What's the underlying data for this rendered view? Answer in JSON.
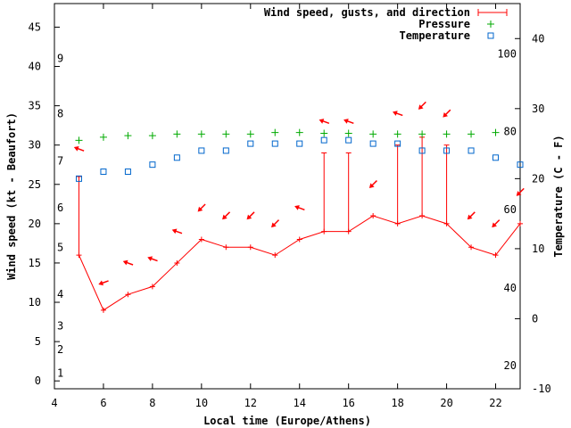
{
  "chart_data": {
    "type": "line",
    "title": "",
    "xlabel": "Local time (Europe/Athens)",
    "ylabel": "Wind speed (kt - Beaufort)",
    "y2label": "Temperature (C - F)",
    "xlim": [
      4,
      23
    ],
    "ylim": [
      -1,
      48
    ],
    "y2lim": [
      -10,
      45
    ],
    "x_ticks": [
      4,
      6,
      8,
      10,
      12,
      14,
      16,
      18,
      20,
      22
    ],
    "y_ticks": [
      0,
      5,
      10,
      15,
      20,
      25,
      30,
      35,
      40,
      45
    ],
    "y2_ticks": [
      -10,
      0,
      10,
      20,
      30,
      40
    ],
    "beaufort_ticks": [
      {
        "label": "1",
        "kt": 1
      },
      {
        "label": "2",
        "kt": 4
      },
      {
        "label": "3",
        "kt": 7
      },
      {
        "label": "4",
        "kt": 11
      },
      {
        "label": "5",
        "kt": 17
      },
      {
        "label": "6",
        "kt": 22
      },
      {
        "label": "7",
        "kt": 28
      },
      {
        "label": "8",
        "kt": 34
      },
      {
        "label": "9",
        "kt": 41
      }
    ],
    "fahrenheit_ticks": [
      {
        "label": "20",
        "c": -6.7
      },
      {
        "label": "40",
        "c": 4.4
      },
      {
        "label": "60",
        "c": 15.6
      },
      {
        "label": "80",
        "c": 26.7
      },
      {
        "label": "100",
        "c": 37.8
      }
    ],
    "legend": [
      "Wind speed, gusts, and direction",
      "Pressure",
      "Temperature"
    ],
    "series": [
      {
        "name": "Wind speed, gusts, and direction",
        "color": "#ff0000",
        "x": [
          5,
          6,
          7,
          8,
          9,
          10,
          11,
          12,
          13,
          14,
          15,
          16,
          17,
          18,
          19,
          20,
          21,
          22,
          23
        ],
        "values": [
          16,
          9,
          11,
          12,
          15,
          18,
          17,
          17,
          16,
          18,
          19,
          19,
          21,
          20,
          21,
          20,
          17,
          16,
          20
        ],
        "gusts": [
          26,
          null,
          null,
          null,
          null,
          null,
          null,
          null,
          null,
          null,
          29,
          29,
          null,
          30,
          31,
          30,
          null,
          null,
          null
        ],
        "direction_arrows": [
          {
            "x": 5,
            "y": 29.5,
            "deg": 200
          },
          {
            "x": 6,
            "y": 12.5,
            "deg": 160
          },
          {
            "x": 7,
            "y": 15,
            "deg": 200
          },
          {
            "x": 8,
            "y": 15.5,
            "deg": 200
          },
          {
            "x": 9,
            "y": 19,
            "deg": 200
          },
          {
            "x": 10,
            "y": 22,
            "deg": 135
          },
          {
            "x": 11,
            "y": 21,
            "deg": 135
          },
          {
            "x": 12,
            "y": 21,
            "deg": 135
          },
          {
            "x": 13,
            "y": 20,
            "deg": 135
          },
          {
            "x": 14,
            "y": 22,
            "deg": 200
          },
          {
            "x": 15,
            "y": 33,
            "deg": 200
          },
          {
            "x": 16,
            "y": 33,
            "deg": 200
          },
          {
            "x": 17,
            "y": 25,
            "deg": 135
          },
          {
            "x": 18,
            "y": 34,
            "deg": 200
          },
          {
            "x": 19,
            "y": 35,
            "deg": 135
          },
          {
            "x": 20,
            "y": 34,
            "deg": 135
          },
          {
            "x": 21,
            "y": 21,
            "deg": 135
          },
          {
            "x": 22,
            "y": 20,
            "deg": 135
          },
          {
            "x": 23,
            "y": 24,
            "deg": 135
          }
        ]
      },
      {
        "name": "Pressure",
        "color": "#00aa00",
        "x": [
          5,
          6,
          7,
          8,
          9,
          10,
          11,
          12,
          13,
          14,
          15,
          16,
          17,
          18,
          19,
          20,
          21,
          22
        ],
        "values": [
          30.6,
          31,
          31.2,
          31.2,
          31.4,
          31.4,
          31.4,
          31.4,
          31.6,
          31.6,
          31.5,
          31.5,
          31.4,
          31.4,
          31.4,
          31.4,
          31.4,
          31.6
        ]
      },
      {
        "name": "Temperature",
        "color": "#0066cc",
        "axis": "y2",
        "x": [
          5,
          6,
          7,
          8,
          9,
          10,
          11,
          12,
          13,
          14,
          15,
          16,
          17,
          18,
          19,
          20,
          21,
          22,
          23
        ],
        "values": [
          20,
          21,
          21,
          22,
          23,
          24,
          24,
          25,
          25,
          25,
          25.5,
          25.5,
          25,
          25,
          24,
          24,
          24,
          23,
          22
        ]
      }
    ]
  }
}
